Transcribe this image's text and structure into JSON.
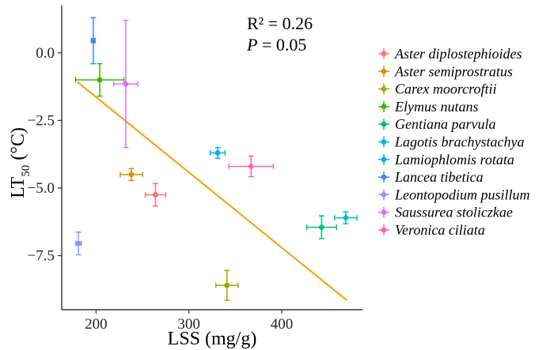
{
  "chart_data": {
    "type": "scatter",
    "xlabel": "LSS (mg/g)",
    "ylabel_main": "LT",
    "ylabel_sub": "50",
    "ylabel_unit": "(°C)",
    "xlim": [
      163,
      487
    ],
    "ylim": [
      -9.5,
      1.75
    ],
    "xticks": [
      200,
      300,
      400
    ],
    "xtick_labels": [
      "200",
      "300",
      "400"
    ],
    "yticks": [
      0.0,
      -2.5,
      -5.0,
      -7.5
    ],
    "ytick_labels": [
      "0.0",
      "−2.5",
      "−5.0",
      "−7.5"
    ],
    "grid": false,
    "legend_position": "right",
    "annotation": {
      "r2_label": "R² = 0.26",
      "p_var": "P",
      "p_rest": " = 0.05"
    },
    "regression": {
      "x": [
        180,
        470
      ],
      "y": [
        -1.08,
        -9.15
      ],
      "color": "#f5a614"
    },
    "series": [
      {
        "name": "Aster diplostephioides",
        "color": "#f8766d",
        "x": 264,
        "y": -5.25,
        "xerr": 11,
        "yerr": 0.42
      },
      {
        "name": "Aster semiprostratus",
        "color": "#d89000",
        "x": 238,
        "y": -4.5,
        "xerr": 12,
        "yerr": 0.22
      },
      {
        "name": "Carex moorcroftii",
        "color": "#a3a500",
        "x": 341,
        "y": -8.6,
        "xerr": 12,
        "yerr": 0.55
      },
      {
        "name": "Elymus nutans",
        "color": "#39b600",
        "x": 204,
        "y": -1.0,
        "xerr": 26,
        "yerr": 0.6
      },
      {
        "name": "Gentiana parvula",
        "color": "#00bf7d",
        "x": 443,
        "y": -6.45,
        "xerr": 16,
        "yerr": 0.42
      },
      {
        "name": "Lagotis brachystachya",
        "color": "#00bfc4",
        "x": 469,
        "y": -6.1,
        "xerr": 12,
        "yerr": 0.22
      },
      {
        "name": "Lamiophlomis rotata",
        "color": "#00b0f6",
        "x": 331,
        "y": -3.7,
        "xerr": 8,
        "yerr": 0.2
      },
      {
        "name": "Lancea tibetica",
        "color": "#3a8cf0",
        "x": 197,
        "y": 0.45,
        "xerr": 2,
        "yerr": 0.85
      },
      {
        "name": "Leontopodium pusillum",
        "color": "#9590ff",
        "x": 181,
        "y": -7.05,
        "xerr": 3,
        "yerr": 0.42
      },
      {
        "name": "Saussurea stoliczkae",
        "color": "#e76bf3",
        "x": 232,
        "y": -1.15,
        "xerr": 13,
        "yerr": 2.35
      },
      {
        "name": "Veronica ciliata",
        "color": "#ff62bc",
        "x": 367,
        "y": -4.2,
        "xerr": 24,
        "yerr": 0.38
      }
    ]
  }
}
